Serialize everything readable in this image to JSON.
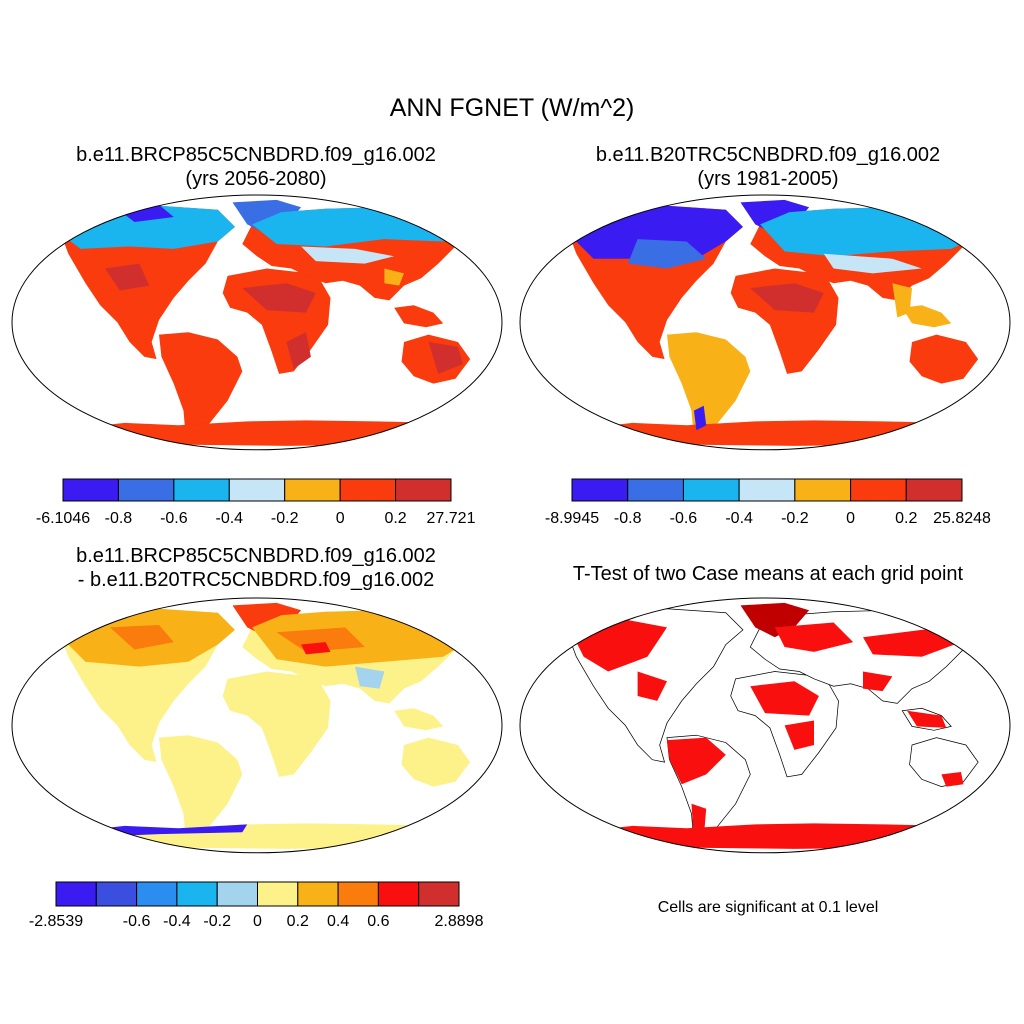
{
  "figure_title": "ANN FGNET (W/m^2)",
  "panels": [
    {
      "title_line1": "b.e11.BRCP85C5CNBDRD.f09_g16.002",
      "title_line2": "(yrs 2056-2080)",
      "colorbar": {
        "colors": [
          "#3a1cf2",
          "#3a6ee4",
          "#1ab5ef",
          "#c6e6f7",
          "#f8b117",
          "#f93b0d",
          "#d02f2e"
        ],
        "labels": [
          "-6.1046",
          "-0.8",
          "-0.6",
          "-0.4",
          "-0.2",
          "0",
          "0.2",
          "27.721"
        ]
      }
    },
    {
      "title_line1": "b.e11.B20TRC5CNBDRD.f09_g16.002",
      "title_line2": "(yrs 1981-2005)",
      "colorbar": {
        "colors": [
          "#3a1cf2",
          "#3a6ee4",
          "#1ab5ef",
          "#c6e6f7",
          "#f8b117",
          "#f93b0d",
          "#d02f2e"
        ],
        "labels": [
          "-8.9945",
          "-0.8",
          "-0.6",
          "-0.4",
          "-0.2",
          "0",
          "0.2",
          "25.8248"
        ]
      }
    },
    {
      "title_line1": "b.e11.BRCP85C5CNBDRD.f09_g16.002",
      "title_line2": "- b.e11.B20TRC5CNBDRD.f09_g16.002",
      "colorbar": {
        "colors": [
          "#3a1cf2",
          "#3a4fe0",
          "#2a8def",
          "#1ab5ef",
          "#a4d3ee",
          "#fdf28a",
          "#f8b117",
          "#f97c0d",
          "#fa0f0f",
          "#d02f2e"
        ],
        "labels": [
          "-2.8539",
          "",
          "-0.6",
          "-0.4",
          "-0.2",
          "0",
          "0.2",
          "0.4",
          "0.6",
          "",
          "2.8898"
        ]
      }
    },
    {
      "title_line1": "T-Test of two Case means at each grid point",
      "footnote": "Cells are significant at 0.1 level"
    }
  ]
}
